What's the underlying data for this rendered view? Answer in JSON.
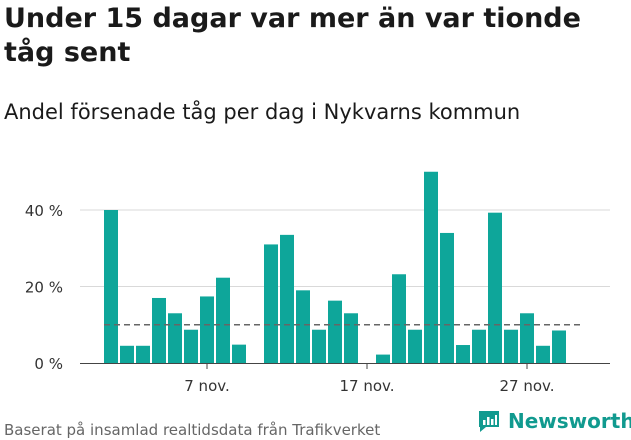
{
  "title": "Under 15 dagar var mer än var tionde tåg sent",
  "subtitle": "Andel försenade tåg per dag i Nykvarns kommun",
  "source": "Baserat på insamlad realtidsdata från Trafikverket",
  "brand": "Newsworthy",
  "colors": {
    "bar": "#0ea69a",
    "grid": "#d9d9d9",
    "reference": "#666666",
    "brand": "#119a8f"
  },
  "chart_data": {
    "type": "bar",
    "x_unit": "day of month (November)",
    "x": [
      1,
      2,
      3,
      4,
      5,
      6,
      7,
      8,
      9,
      10,
      11,
      12,
      13,
      14,
      15,
      16,
      17,
      18,
      19,
      20,
      21,
      22,
      23,
      24,
      25,
      26,
      27,
      28,
      29,
      30
    ],
    "values": [
      40,
      4.5,
      4.5,
      17,
      13,
      8.7,
      17.4,
      22.3,
      4.8,
      null,
      31,
      33.5,
      19,
      8.7,
      16.3,
      13,
      0,
      2.2,
      23.2,
      8.7,
      50,
      34,
      4.7,
      8.7,
      39.3,
      8.7,
      13,
      4.5,
      8.5,
      null
    ],
    "reference_line": 10,
    "ylim": [
      0,
      55
    ],
    "y_ticks": [
      0,
      20,
      40
    ],
    "y_tick_labels": [
      "0 %",
      "20 %",
      "40 %"
    ],
    "x_ticks": [
      7,
      17,
      27
    ],
    "x_tick_labels": [
      "7 nov.",
      "17 nov.",
      "27 nov."
    ],
    "grid": true
  }
}
